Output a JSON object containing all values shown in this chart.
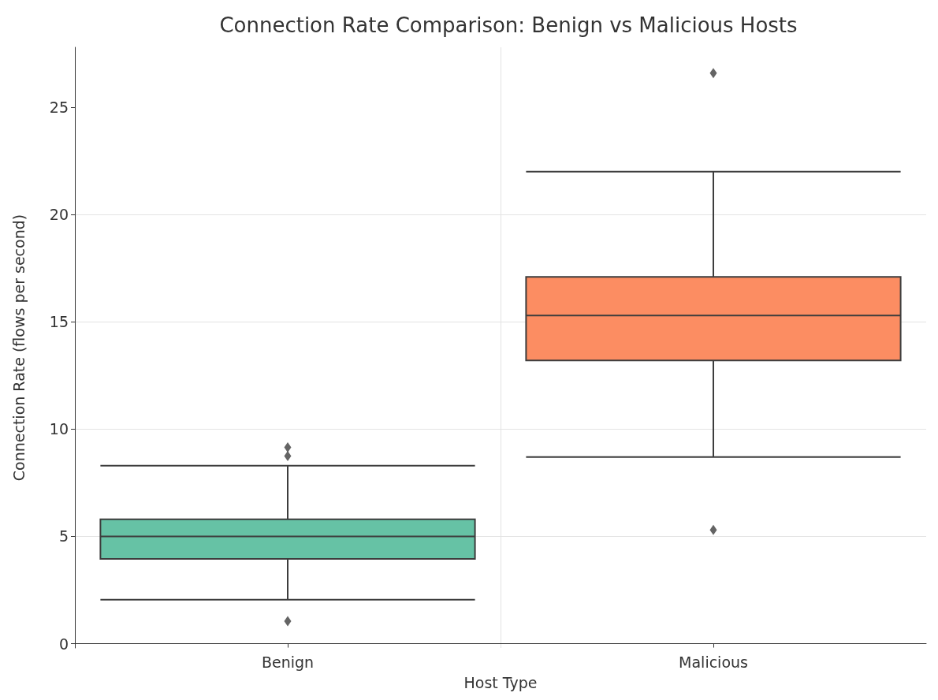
{
  "chart_data": {
    "type": "box",
    "title": "Connection Rate Comparison: Benign vs Malicious Hosts",
    "xlabel": "Host Type",
    "ylabel": "Connection Rate (flows per second)",
    "categories": [
      "Benign",
      "Malicious"
    ],
    "boxes": [
      {
        "low": 2.05,
        "q1": 3.95,
        "median": 5.0,
        "q3": 5.8,
        "high": 8.3,
        "outliers": [
          1.05,
          8.75,
          9.15
        ]
      },
      {
        "low": 8.7,
        "q1": 13.2,
        "median": 15.3,
        "q3": 17.1,
        "high": 22.0,
        "outliers": [
          5.3,
          26.6
        ]
      }
    ],
    "colors": [
      "#66c2a5",
      "#fc8d62"
    ],
    "ylim": [
      -0.2,
      27.8
    ],
    "yticks": [
      0,
      5,
      10,
      15,
      20,
      25
    ],
    "grid": true,
    "marker": "diamond"
  }
}
